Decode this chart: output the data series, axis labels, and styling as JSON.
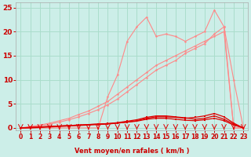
{
  "xlabel": "Vent moyen/en rafales ( km/h )",
  "bg_color": "#cceee8",
  "grid_color": "#aaddcc",
  "line_color_light": "#ff8888",
  "line_color_dark": "#dd0000",
  "label_color": "#cc0000",
  "ylim": [
    -0.5,
    26
  ],
  "xlim": [
    -0.5,
    23.5
  ],
  "yticks": [
    0,
    5,
    10,
    15,
    20,
    25
  ],
  "xticks": [
    0,
    1,
    2,
    3,
    4,
    5,
    6,
    7,
    8,
    9,
    10,
    11,
    12,
    13,
    14,
    15,
    16,
    17,
    18,
    19,
    20,
    21,
    22,
    23
  ],
  "light_line1_x": [
    0,
    1,
    2,
    3,
    4,
    5,
    6,
    7,
    8,
    9,
    10,
    11,
    12,
    13,
    14,
    15,
    16,
    17,
    18,
    19,
    20,
    21,
    22,
    23
  ],
  "light_line1_y": [
    0,
    0.3,
    0.6,
    1.0,
    1.5,
    2.0,
    2.8,
    3.5,
    4.5,
    5.5,
    7.0,
    8.5,
    10.0,
    11.5,
    13.0,
    14.0,
    15.0,
    16.0,
    17.0,
    18.0,
    19.0,
    20.0,
    0,
    0
  ],
  "light_line2_x": [
    0,
    1,
    2,
    3,
    4,
    5,
    6,
    7,
    8,
    9,
    10,
    11,
    12,
    13,
    14,
    15,
    16,
    17,
    18,
    19,
    20,
    21,
    22,
    23
  ],
  "light_line2_y": [
    0,
    0.2,
    0.4,
    0.8,
    1.2,
    1.7,
    2.3,
    3.0,
    3.8,
    4.8,
    6.0,
    7.5,
    9.0,
    10.5,
    12.0,
    13.0,
    14.0,
    15.5,
    16.5,
    17.5,
    19.5,
    21.0,
    0,
    0
  ],
  "light_line3_x": [
    0,
    1,
    2,
    3,
    4,
    5,
    6,
    7,
    8,
    9,
    10,
    11,
    12,
    13,
    14,
    15,
    16,
    17,
    18,
    19,
    20,
    21,
    22,
    23
  ],
  "light_line3_y": [
    0,
    0,
    0,
    0,
    0,
    0,
    0,
    0,
    0,
    6.5,
    11.0,
    18.0,
    21.0,
    23.0,
    19.0,
    19.5,
    19.0,
    18.0,
    19.0,
    20.0,
    24.5,
    21.0,
    10.0,
    0
  ],
  "dark_line1_x": [
    0,
    1,
    2,
    3,
    4,
    5,
    6,
    7,
    8,
    9,
    10,
    11,
    12,
    13,
    14,
    15,
    16,
    17,
    18,
    19,
    20,
    21,
    22,
    23
  ],
  "dark_line1_y": [
    0,
    0.1,
    0.2,
    0.3,
    0.4,
    0.5,
    0.6,
    0.7,
    0.8,
    0.9,
    1.0,
    1.2,
    1.5,
    2.0,
    2.3,
    2.3,
    2.2,
    2.0,
    2.2,
    2.5,
    3.0,
    2.3,
    1.0,
    0
  ],
  "dark_line2_x": [
    0,
    1,
    2,
    3,
    4,
    5,
    6,
    7,
    8,
    9,
    10,
    11,
    12,
    13,
    14,
    15,
    16,
    17,
    18,
    19,
    20,
    21,
    22,
    23
  ],
  "dark_line2_y": [
    0,
    0.1,
    0.2,
    0.3,
    0.4,
    0.5,
    0.6,
    0.7,
    0.8,
    0.9,
    1.1,
    1.4,
    1.7,
    2.2,
    2.5,
    2.5,
    2.3,
    2.1,
    1.8,
    2.0,
    2.5,
    1.8,
    0.8,
    0
  ],
  "dark_line3_x": [
    0,
    1,
    2,
    3,
    4,
    5,
    6,
    7,
    8,
    9,
    10,
    11,
    12,
    13,
    14,
    15,
    16,
    17,
    18,
    19,
    20,
    21,
    22,
    23
  ],
  "dark_line3_y": [
    0,
    0.0,
    0.1,
    0.2,
    0.3,
    0.4,
    0.5,
    0.6,
    0.7,
    0.8,
    1.0,
    1.2,
    1.4,
    1.8,
    2.0,
    2.0,
    1.8,
    1.6,
    1.5,
    1.7,
    2.0,
    1.5,
    0.6,
    0
  ]
}
